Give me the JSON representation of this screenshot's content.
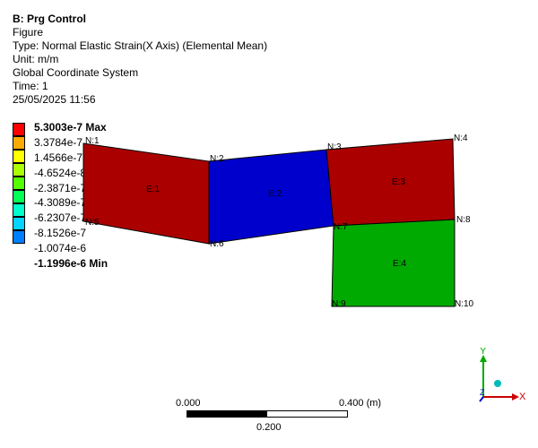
{
  "info": {
    "title": "B: Prg Control",
    "line1": "Figure",
    "line2": "Type: Normal Elastic Strain(X Axis) (Elemental Mean)",
    "line3": "Unit: m/m",
    "line4": "Global Coordinate System",
    "line5": "Time: 1",
    "line6": "25/05/2025 11:56"
  },
  "legend": {
    "colors": [
      "#ff0000",
      "#ffaa00",
      "#ffff00",
      "#aaff00",
      "#55ff00",
      "#00ff55",
      "#00ffcc",
      "#00d4ff",
      "#0080ff",
      "#0000ff"
    ],
    "labels": [
      "5.3003e-7 Max",
      "3.3784e-7",
      "1.4566e-7",
      "-4.6524e-8",
      "-2.3871e-7",
      "-4.3089e-7",
      "-6.2307e-7",
      "-8.1526e-7",
      "-1.0074e-6",
      "-1.1996e-6 Min"
    ]
  },
  "model": {
    "elements": {
      "e1": {
        "label": "E:1",
        "color": "#aa0000"
      },
      "e2": {
        "label": "E:2",
        "color": "#0000cc"
      },
      "e3": {
        "label": "E:3",
        "color": "#aa0000"
      },
      "e4": {
        "label": "E:4",
        "color": "#00aa00"
      }
    },
    "nodes": {
      "n1": "N:1",
      "n2": "N:2",
      "n3": "N:3",
      "n4": "N:4",
      "n5": "N:5",
      "n6": "N:6",
      "n7": "N:7",
      "n8": "N:8",
      "n9": "N:9",
      "n10": "N:10"
    }
  },
  "scale": {
    "left": "0.000",
    "right": "0.400 (m)",
    "mid": "0.200"
  },
  "triad": {
    "x": "X",
    "y": "Y",
    "z": "Z"
  }
}
